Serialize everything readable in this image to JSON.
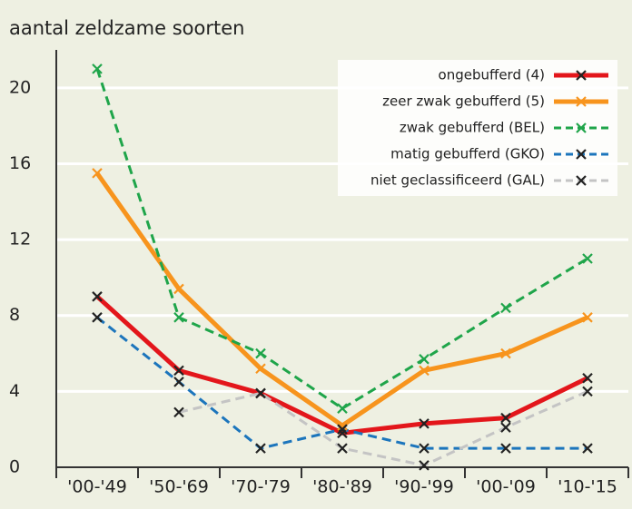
{
  "chart_data": {
    "type": "line",
    "title": "aantal zeldzame soorten",
    "categories": [
      "'00-'49",
      "'50-'69",
      "'70-'79",
      "'80-'89",
      "'90-'99",
      "'00-'09",
      "'10-'15"
    ],
    "series": [
      {
        "name": "ongebufferd (4)",
        "color": "#e3161b",
        "dashed": false,
        "values": [
          9,
          5.1,
          3.9,
          1.8,
          2.3,
          2.6,
          4.7
        ]
      },
      {
        "name": "zeer zwak gebufferd (5)",
        "color": "#f7941d",
        "dashed": false,
        "values": [
          15.5,
          9.4,
          5.2,
          2.2,
          5.1,
          6,
          7.9
        ]
      },
      {
        "name": "zwak gebufferd (BEL)",
        "color": "#1fa54a",
        "dashed": true,
        "values": [
          21,
          7.9,
          6,
          3.1,
          5.7,
          8.4,
          11
        ]
      },
      {
        "name": "matig gebufferd (GKO)",
        "color": "#1c75bc",
        "dashed": true,
        "values": [
          7.9,
          4.5,
          1,
          2,
          1,
          1,
          1
        ]
      },
      {
        "name": "niet geclassificeerd (GAL)",
        "color": "#c4c4c4",
        "dashed": true,
        "values": [
          null,
          2.9,
          3.9,
          1,
          0.1,
          2.1,
          4
        ]
      }
    ],
    "ylim": [
      0,
      22
    ],
    "yticks": [
      0,
      4,
      8,
      12,
      16,
      20
    ],
    "grid": true,
    "legend": "top-right"
  }
}
